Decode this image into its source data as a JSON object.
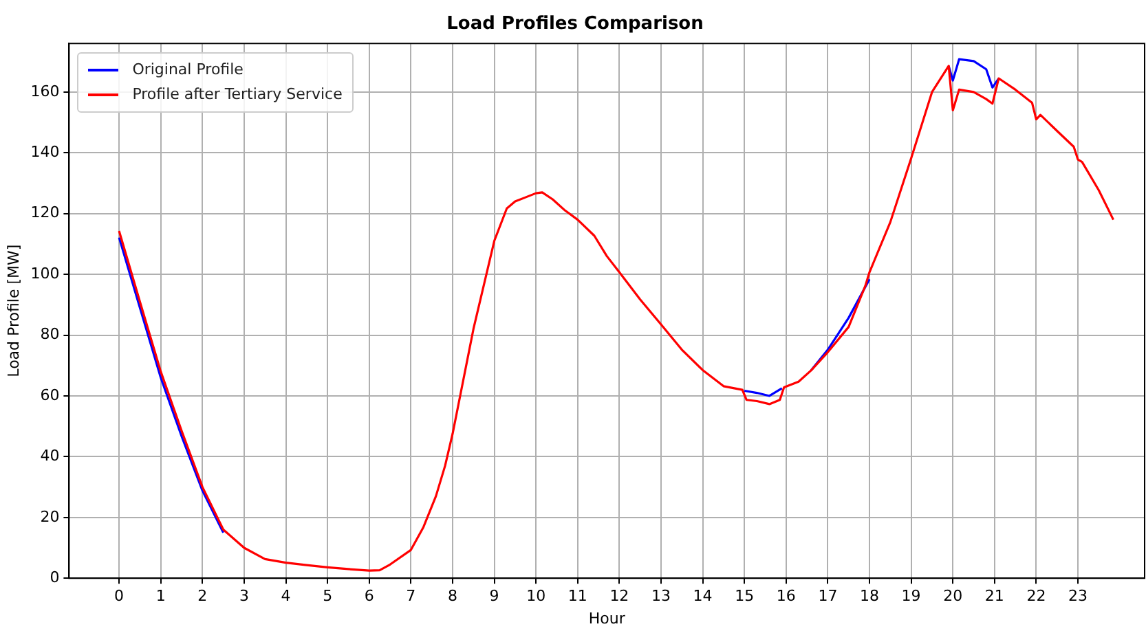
{
  "chart_data": {
    "type": "line",
    "title": "Load Profiles Comparison",
    "xlabel": "Hour",
    "ylabel": "Load Profile [MW]",
    "xlim": [
      -1.2,
      24.6
    ],
    "xticks": [
      0,
      1,
      2,
      3,
      4,
      5,
      6,
      7,
      8,
      9,
      10,
      11,
      12,
      13,
      14,
      15,
      16,
      17,
      18,
      19,
      20,
      21,
      22,
      23
    ],
    "ylim": [
      0,
      176
    ],
    "yticks": [
      0,
      20,
      40,
      60,
      80,
      100,
      120,
      140,
      160
    ],
    "grid": true,
    "legend": "top left",
    "marker": "none",
    "line_style": "solid",
    "series": [
      {
        "name": "Original Profile",
        "color": "#0000ff",
        "x": [
          0,
          0.5,
          1,
          1.5,
          2,
          2.5,
          null,
          15,
          15.3,
          15.6,
          15.9,
          null,
          16.6,
          17,
          17.5,
          18,
          null,
          19.9,
          20,
          20.15,
          20.5,
          20.8,
          20.95,
          21.1
        ],
        "values": [
          112.1,
          89,
          66,
          46.7,
          28.8,
          15,
          null,
          61.7,
          61,
          60,
          62.5,
          null,
          68.4,
          75.2,
          85.7,
          98.4,
          null,
          168.6,
          163.8,
          170.8,
          170.2,
          167.5,
          161.5,
          164.5
        ]
      },
      {
        "name": "Profile after Tertiary Service",
        "color": "#ff0000",
        "x": [
          0,
          0.5,
          1,
          1.5,
          2,
          2.5,
          3,
          3.5,
          4,
          4.5,
          5,
          5.5,
          6,
          6.25,
          6.5,
          7,
          7.3,
          7.6,
          7.82,
          8,
          8.5,
          9,
          9.3,
          9.5,
          10,
          10.15,
          10.4,
          10.7,
          11,
          11.4,
          11.7,
          12,
          12.5,
          13,
          13.5,
          14,
          14.5,
          14.95,
          15.05,
          15.3,
          15.6,
          15.85,
          15.95,
          16.3,
          16.6,
          17,
          17.5,
          17.9,
          18,
          18.5,
          19,
          19.5,
          19.9,
          20,
          20.15,
          20.5,
          20.8,
          20.95,
          21.1,
          21.5,
          21.9,
          22,
          22.1,
          22.5,
          22.9,
          23,
          23.1,
          23.5,
          23.85
        ],
        "values": [
          114.3,
          91,
          68,
          48.5,
          30,
          16,
          10,
          6.3,
          5.1,
          4.3,
          3.6,
          3,
          2.5,
          2.6,
          4.5,
          9.3,
          16.8,
          27,
          37,
          47.5,
          82,
          111,
          121.7,
          124,
          126.7,
          127,
          124.7,
          121,
          118,
          112.7,
          106,
          100.7,
          91.7,
          83.5,
          75.2,
          68.5,
          63.2,
          62,
          58.7,
          58.3,
          57.3,
          58.7,
          62.8,
          64.7,
          68.4,
          74.4,
          82.7,
          96.2,
          100.7,
          117.2,
          138.2,
          160,
          168.6,
          154,
          160.8,
          160,
          157.7,
          156.2,
          164.5,
          160.8,
          156.5,
          151,
          152.5,
          147.2,
          142,
          137.8,
          137,
          127.7,
          118
        ]
      }
    ]
  }
}
